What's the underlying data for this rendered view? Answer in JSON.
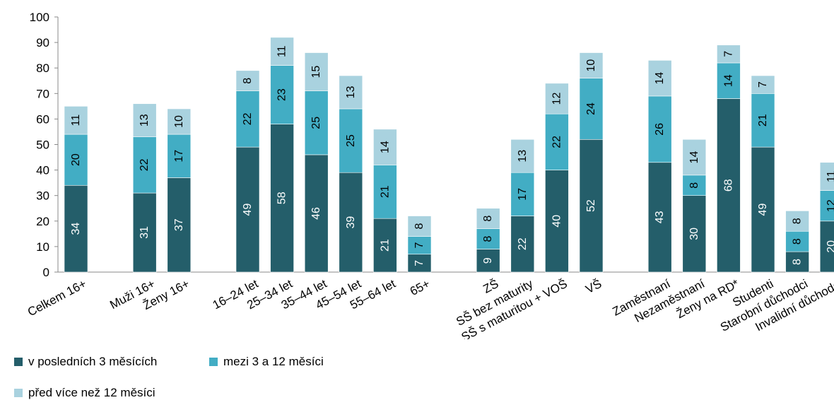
{
  "chart_data": {
    "type": "bar",
    "stacked": true,
    "categories": [
      "Celkem 16+",
      "",
      "Muži 16+",
      "Ženy 16+",
      "",
      "16–24 let",
      "25–34 let",
      "35–44 let",
      "45–54 let",
      "55–64 let",
      "65+",
      "",
      "ZŠ",
      "SŠ bez maturity",
      "SŠ s maturitou + VOŠ",
      "VŠ",
      "",
      "Zaměstnaní",
      "Nezaměstnaní",
      "Ženy na RD*",
      "Studenti",
      "Starobní důchodci",
      "Invalidní důchodci"
    ],
    "series": [
      {
        "name": "v posledních 3 měsících",
        "color": "#245E6A",
        "values": [
          34,
          null,
          31,
          37,
          null,
          49,
          58,
          46,
          39,
          21,
          7,
          null,
          9,
          22,
          40,
          52,
          null,
          43,
          30,
          68,
          49,
          8,
          20
        ]
      },
      {
        "name": "mezi 3 a 12 měsíci",
        "color": "#42ADC4",
        "values": [
          20,
          null,
          22,
          17,
          null,
          22,
          23,
          25,
          25,
          21,
          7,
          null,
          8,
          17,
          22,
          24,
          null,
          26,
          8,
          14,
          21,
          8,
          12
        ]
      },
      {
        "name": "před více než 12 měsíci",
        "color": "#A9D2DF",
        "values": [
          11,
          null,
          13,
          10,
          null,
          8,
          11,
          15,
          13,
          14,
          8,
          null,
          8,
          13,
          12,
          10,
          null,
          14,
          14,
          7,
          7,
          8,
          11
        ]
      }
    ],
    "yticks": [
      "0",
      "10",
      "20",
      "30",
      "40",
      "50",
      "60",
      "70",
      "80",
      "90",
      "100"
    ],
    "ylim": [
      0,
      100
    ],
    "grid": false,
    "legend": "bottom-left"
  }
}
